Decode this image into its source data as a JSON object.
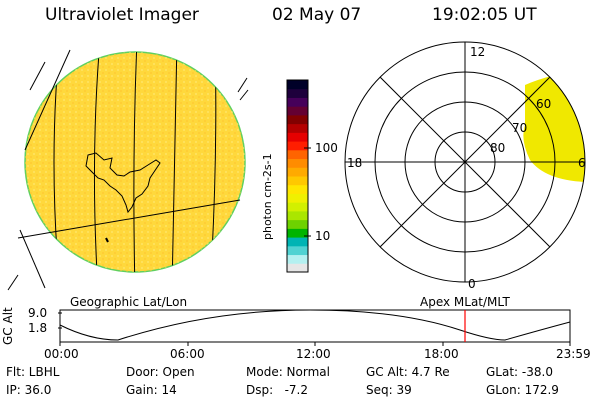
{
  "header": {
    "instrument": "Ultraviolet Imager",
    "date": "02 May 07",
    "time": "19:02:05 UT"
  },
  "colorbar": {
    "label": "photon cm-2s-1",
    "ticks": [
      "100",
      "10"
    ],
    "colors": [
      "#e6e6e6",
      "#b4f0f0",
      "#50d2d2",
      "#00b4b4",
      "#00b400",
      "#6ed200",
      "#aae600",
      "#d2f000",
      "#f0f000",
      "#ffe600",
      "#ffc800",
      "#ffaa00",
      "#ff8c00",
      "#ff6400",
      "#ff1e00",
      "#e60000",
      "#b40000",
      "#820000",
      "#640032",
      "#46005a",
      "#1e003c",
      "#000028"
    ]
  },
  "geo_panel": {
    "label": "Geographic Lat/Lon",
    "fill_color": "#ffd83c"
  },
  "polar_panel": {
    "label": "Apex MLat/MLT",
    "mlt_labels": [
      "12",
      "18",
      "0",
      "6"
    ],
    "lat_labels": [
      "60",
      "70",
      "80"
    ],
    "fill_color": "#f0e800"
  },
  "altitude_plot": {
    "ylabel": "GC Alt",
    "yticks": [
      "9.0",
      "1.8"
    ],
    "xticks": [
      "00:00",
      "06:00",
      "12:00",
      "18:00",
      "23:59"
    ],
    "current_time_marker": "19:02",
    "marker_color": "#ff0000"
  },
  "footer": {
    "filter": "Flt: LBHL",
    "ip": "IP: 36.0",
    "door": "Door: Open",
    "gain": "Gain: 14",
    "mode": "Mode: Normal",
    "dsp": "Dsp:   -7.2",
    "gc_alt": "GC Alt: 4.7 Re",
    "seq": "Seq: 39",
    "glat": "GLat: -38.0",
    "glon": "GLon: 172.9"
  }
}
